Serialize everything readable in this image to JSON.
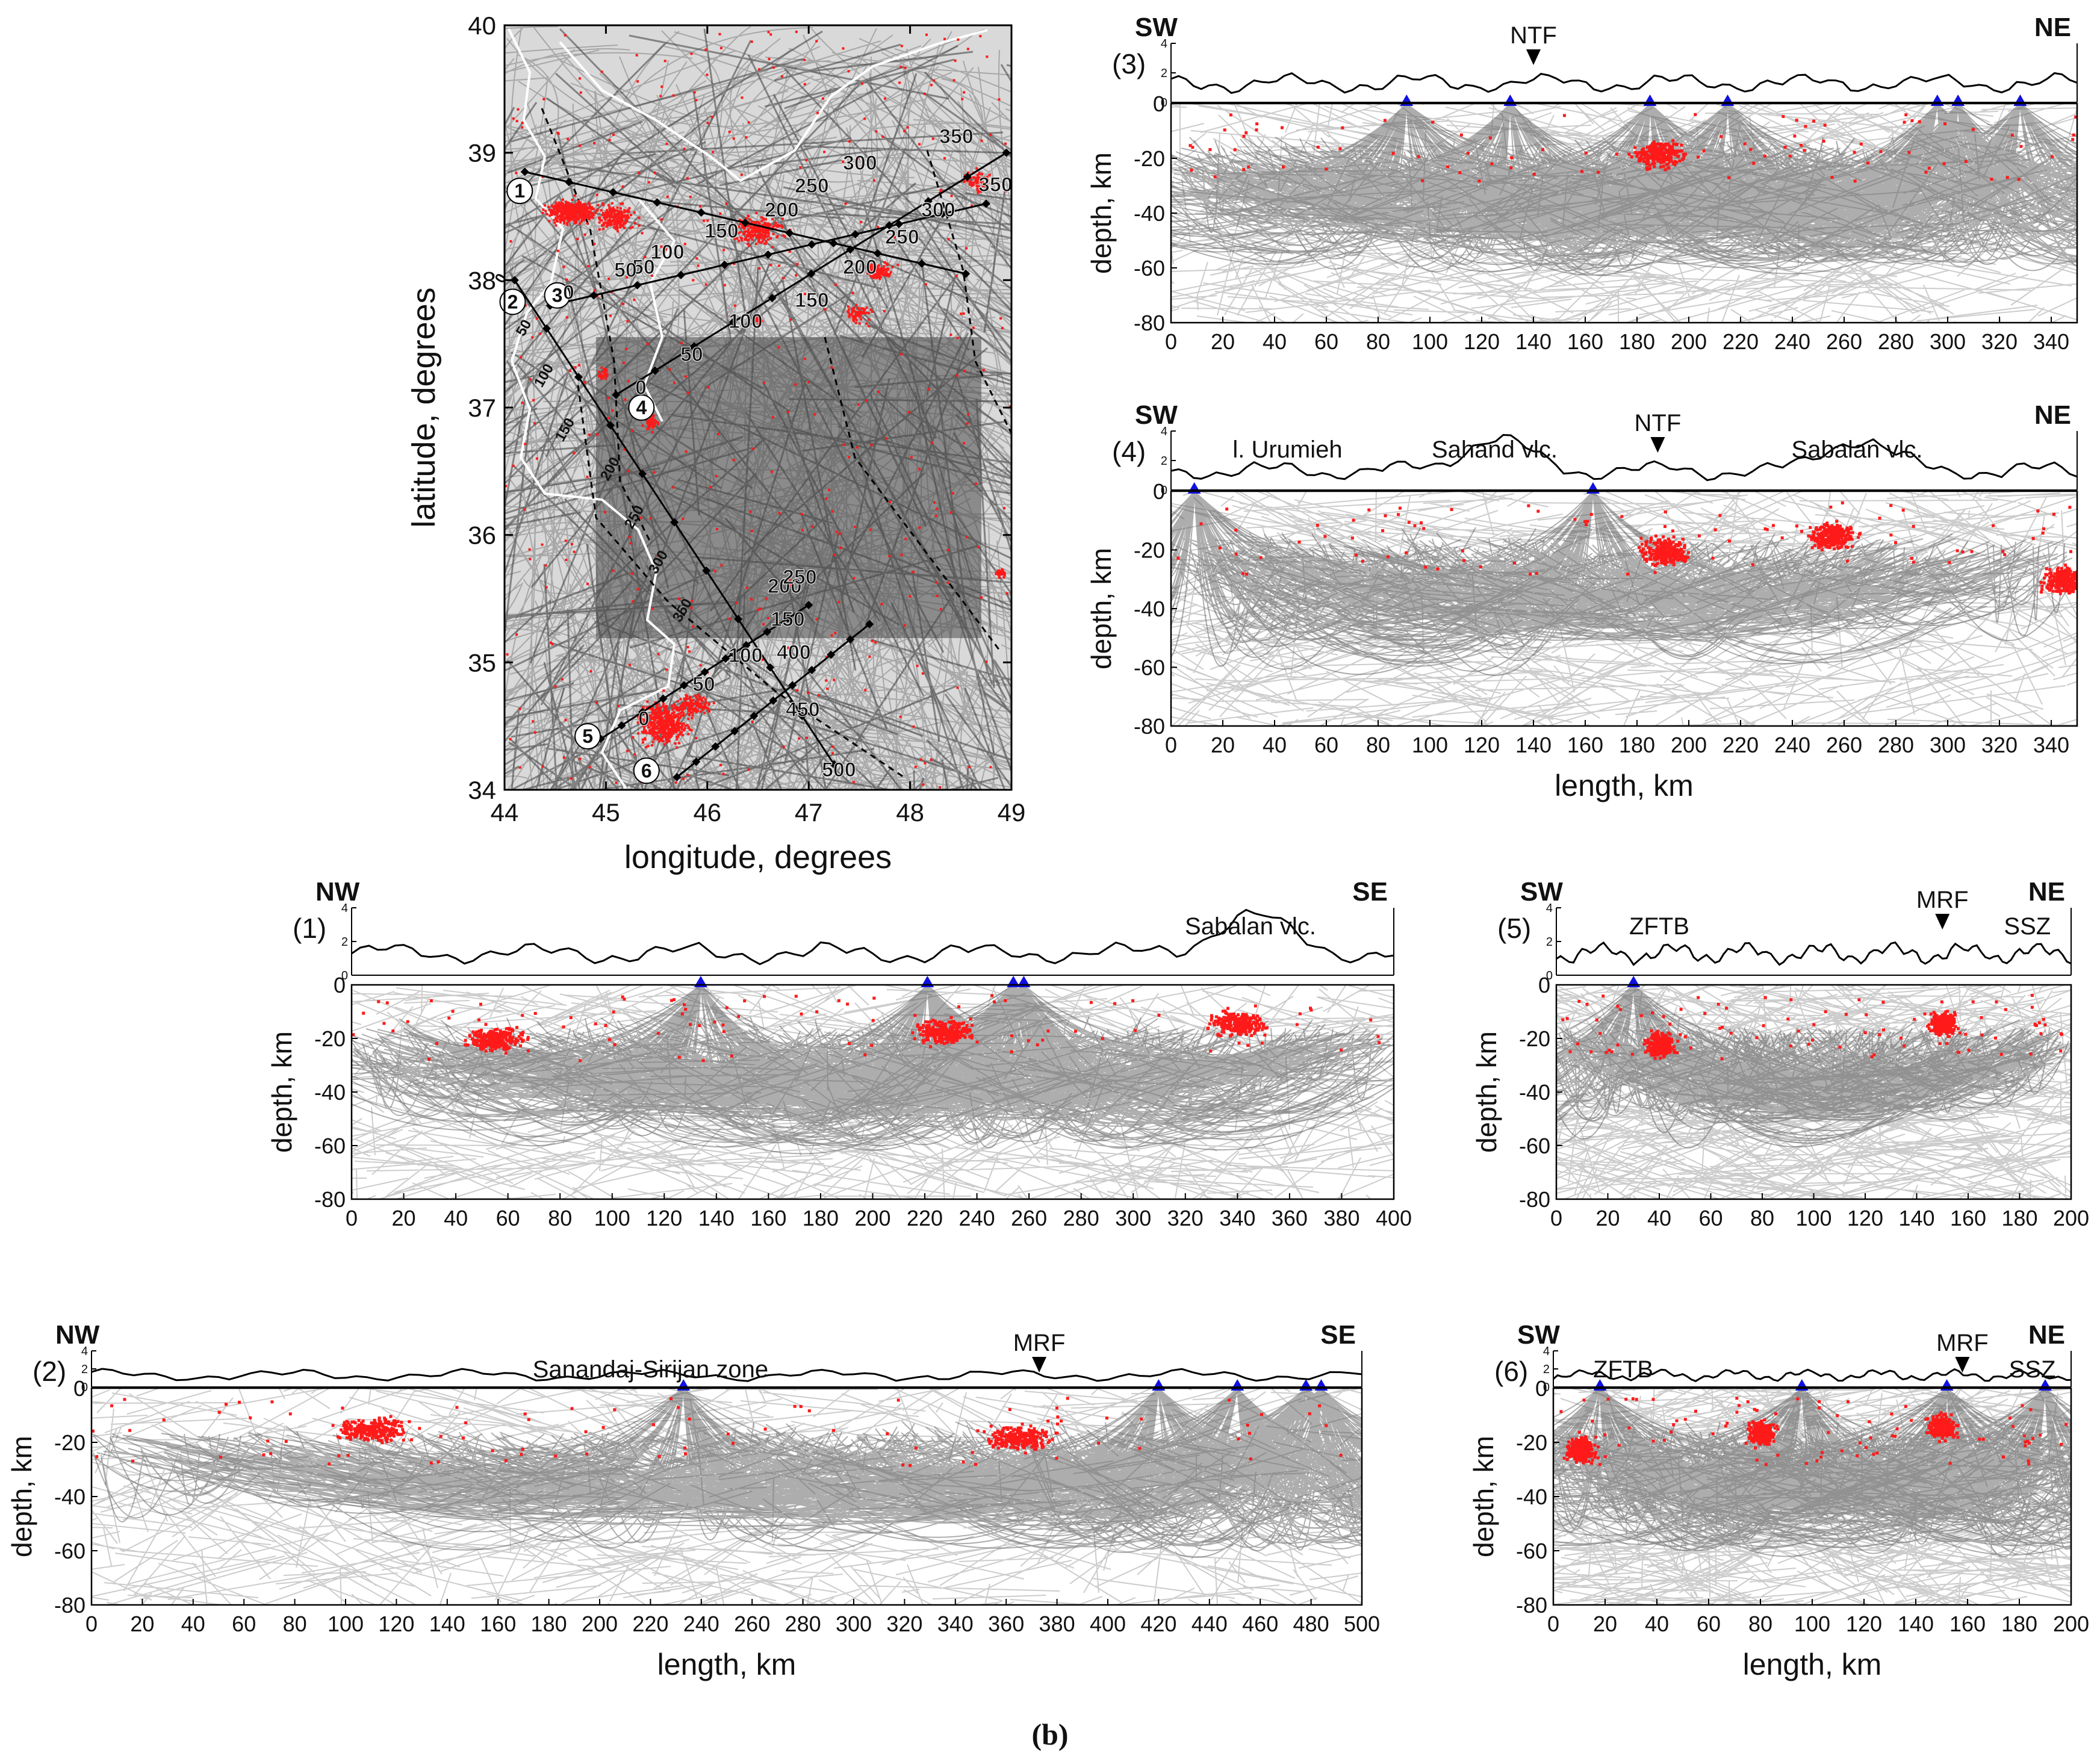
{
  "caption": "(b)",
  "map": {
    "xlabel": "longitude, degrees",
    "ylabel": "latitude, degrees",
    "xlim": [
      44,
      49
    ],
    "ylim": [
      34,
      40
    ],
    "xticks": [
      "44",
      "45",
      "46",
      "47",
      "48",
      "49"
    ],
    "yticks": [
      "34",
      "35",
      "36",
      "37",
      "38",
      "39",
      "40"
    ],
    "profile_ids": [
      "1",
      "2",
      "3",
      "4",
      "5",
      "6"
    ],
    "distance_marks": [
      "0",
      "50",
      "100",
      "150",
      "200",
      "250",
      "300",
      "350",
      "400",
      "450",
      "500"
    ]
  },
  "colors": {
    "rays": "#4a4a4a",
    "events": "#ff1a1a",
    "stations": "#1010e0",
    "border": "#ffffff"
  },
  "chart_data": [
    {
      "type": "scatter",
      "id": "1",
      "panel": "(1)",
      "left_dir": "NW",
      "right_dir": "SE",
      "annotations": [
        {
          "text": "Sabalan vlc.",
          "x": 345,
          "marker": false
        }
      ],
      "xlabel": "",
      "ylabel": "depth, km",
      "xlim": [
        0,
        400
      ],
      "ylim": [
        -80,
        0
      ],
      "xticks": [
        "0",
        "20",
        "40",
        "60",
        "80",
        "100",
        "120",
        "140",
        "160",
        "180",
        "200",
        "220",
        "240",
        "260",
        "280",
        "300",
        "320",
        "340",
        "360",
        "380",
        "400"
      ],
      "yticks": [
        "0",
        "-20",
        "-40",
        "-60",
        "-80"
      ],
      "topo_ticks": [
        "4",
        "2",
        "0"
      ],
      "stations_km": [
        134,
        221,
        254,
        258
      ],
      "clusters": [
        {
          "x": 227,
          "depth": -17
        },
        {
          "x": 55,
          "depth": -20
        },
        {
          "x": 340,
          "depth": -14
        }
      ]
    },
    {
      "type": "scatter",
      "id": "2",
      "panel": "(2)",
      "left_dir": "NW",
      "right_dir": "SE",
      "annotations": [
        {
          "text": "Sanandaj-Sirijan zone",
          "x": 220,
          "marker": false
        },
        {
          "text": "MRF",
          "x": 373,
          "marker": true
        }
      ],
      "xlabel": "length, km",
      "ylabel": "depth, km",
      "xlim": [
        0,
        500
      ],
      "ylim": [
        -80,
        0
      ],
      "xticks": [
        "0",
        "20",
        "40",
        "60",
        "80",
        "100",
        "120",
        "140",
        "160",
        "180",
        "200",
        "220",
        "240",
        "260",
        "280",
        "300",
        "320",
        "340",
        "360",
        "380",
        "400",
        "420",
        "440",
        "460",
        "480",
        "500"
      ],
      "yticks": [
        "0",
        "-20",
        "-40",
        "-60",
        "-80"
      ],
      "topo_ticks": [
        "4",
        "2",
        "0"
      ],
      "stations_km": [
        233,
        420,
        451,
        478,
        484
      ],
      "clusters": [
        {
          "x": 110,
          "depth": -15
        },
        {
          "x": 365,
          "depth": -18
        }
      ]
    },
    {
      "type": "scatter",
      "id": "3",
      "panel": "(3)",
      "left_dir": "SW",
      "right_dir": "NE",
      "annotations": [
        {
          "text": "NTF",
          "x": 140,
          "marker": true
        }
      ],
      "xlabel": "",
      "ylabel": "depth, km",
      "xlim": [
        0,
        350
      ],
      "ylim": [
        -80,
        0
      ],
      "xticks": [
        "0",
        "20",
        "40",
        "60",
        "80",
        "100",
        "120",
        "140",
        "160",
        "180",
        "200",
        "220",
        "240",
        "260",
        "280",
        "300",
        "320",
        "340"
      ],
      "yticks": [
        "0",
        "-20",
        "-40",
        "-60",
        "-80"
      ],
      "topo_ticks": [
        "4",
        "2",
        "0"
      ],
      "stations_km": [
        91,
        131,
        185,
        215,
        296,
        304,
        328
      ],
      "clusters": [
        {
          "x": 188,
          "depth": -18
        }
      ]
    },
    {
      "type": "scatter",
      "id": "4",
      "panel": "(4)",
      "left_dir": "SW",
      "right_dir": "NE",
      "annotations": [
        {
          "text": "l. Urumieh",
          "x": 45,
          "marker": false
        },
        {
          "text": "Sahand vlc.",
          "x": 125,
          "marker": false
        },
        {
          "text": "NTF",
          "x": 188,
          "marker": true
        },
        {
          "text": "Sabalan vlc.",
          "x": 265,
          "marker": false
        }
      ],
      "xlabel": "length, km",
      "ylabel": "depth, km",
      "xlim": [
        0,
        350
      ],
      "ylim": [
        -80,
        0
      ],
      "xticks": [
        "0",
        "20",
        "40",
        "60",
        "80",
        "100",
        "120",
        "140",
        "160",
        "180",
        "200",
        "220",
        "240",
        "260",
        "280",
        "300",
        "320",
        "340"
      ],
      "yticks": [
        "0",
        "-20",
        "-40",
        "-60",
        "-80"
      ],
      "topo_ticks": [
        "4",
        "2",
        "0"
      ],
      "stations_km": [
        9,
        163
      ],
      "clusters": [
        {
          "x": 190,
          "depth": -20
        },
        {
          "x": 255,
          "depth": -15
        },
        {
          "x": 345,
          "depth": -30
        }
      ]
    },
    {
      "type": "scatter",
      "id": "5",
      "panel": "(5)",
      "left_dir": "SW",
      "right_dir": "NE",
      "annotations": [
        {
          "text": "ZFTB",
          "x": 40,
          "marker": false
        },
        {
          "text": "MRF",
          "x": 150,
          "marker": true
        },
        {
          "text": "SSZ",
          "x": 183,
          "marker": false
        }
      ],
      "xlabel": "",
      "ylabel": "depth, km",
      "xlim": [
        0,
        200
      ],
      "ylim": [
        -80,
        0
      ],
      "xticks": [
        "0",
        "20",
        "40",
        "60",
        "80",
        "100",
        "120",
        "140",
        "160",
        "180",
        "200"
      ],
      "yticks": [
        "0",
        "-20",
        "-40",
        "-60",
        "-80"
      ],
      "topo_ticks": [
        "4",
        "2",
        "0"
      ],
      "stations_km": [
        30
      ],
      "clusters": [
        {
          "x": 40,
          "depth": -22
        },
        {
          "x": 150,
          "depth": -14
        }
      ]
    },
    {
      "type": "scatter",
      "id": "6",
      "panel": "(6)",
      "left_dir": "SW",
      "right_dir": "NE",
      "annotations": [
        {
          "text": "ZFTB",
          "x": 27,
          "marker": false
        },
        {
          "text": "MRF",
          "x": 158,
          "marker": true
        },
        {
          "text": "SSZ",
          "x": 185,
          "marker": false
        }
      ],
      "xlabel": "length, km",
      "ylabel": "depth, km",
      "xlim": [
        0,
        200
      ],
      "ylim": [
        -80,
        0
      ],
      "xticks": [
        "0",
        "20",
        "40",
        "60",
        "80",
        "100",
        "120",
        "140",
        "160",
        "180",
        "200"
      ],
      "yticks": [
        "0",
        "-20",
        "-40",
        "-60",
        "-80"
      ],
      "topo_ticks": [
        "4",
        "2",
        "0"
      ],
      "stations_km": [
        18,
        96,
        152,
        190
      ],
      "clusters": [
        {
          "x": 10,
          "depth": -22
        },
        {
          "x": 80,
          "depth": -16
        },
        {
          "x": 150,
          "depth": -14
        }
      ]
    }
  ]
}
